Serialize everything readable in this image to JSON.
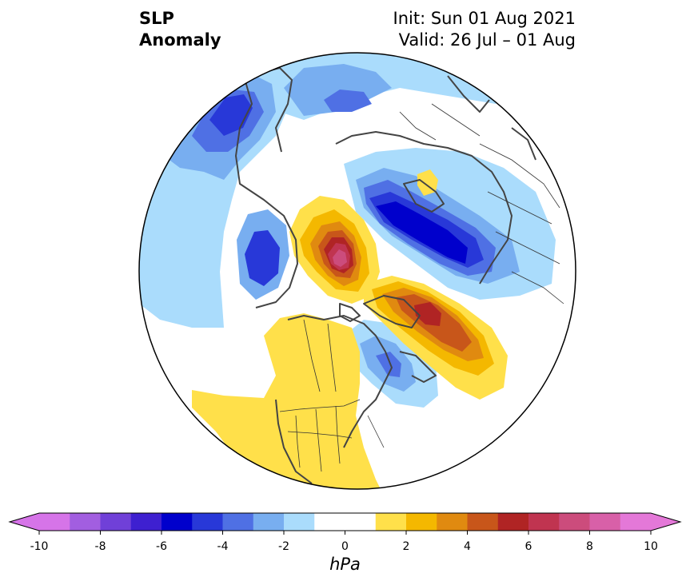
{
  "title": {
    "left_line1": "SLP",
    "left_line2": "Anomaly",
    "right_line1": "Init: Sun 01 Aug 2021",
    "right_line2": "Valid: 26 Jul – 01 Aug"
  },
  "colorbar": {
    "units": "hPa",
    "min": -10,
    "max": 10,
    "step": 1,
    "ticks": [
      "-10",
      "-8",
      "-6",
      "-4",
      "-2",
      "0",
      "2",
      "4",
      "6",
      "8",
      "10"
    ],
    "colors": [
      "#d674e8",
      "#a25ee0",
      "#7040d8",
      "#3e20d0",
      "#0000cc",
      "#2838d8",
      "#4f70e4",
      "#78aef0",
      "#aadcfc",
      "#ffffff",
      "#ffffff",
      "#ffe04a",
      "#f4b800",
      "#e08a10",
      "#c8561a",
      "#b02424",
      "#c03450",
      "#cc4c7c",
      "#d860a8",
      "#e478d8"
    ],
    "extend_min_color": "#d674e8",
    "extend_max_color": "#e478d8"
  },
  "map": {
    "projection": "north-polar-stereographic",
    "anomalies": [
      {
        "region": "North Pacific",
        "sign": "negative",
        "peak_hpa": -5
      },
      {
        "region": "Gulf of Alaska",
        "sign": "negative",
        "peak_hpa": -4
      },
      {
        "region": "Arctic Ocean (Siberian side)",
        "sign": "positive",
        "peak_hpa": 8
      },
      {
        "region": "Siberia / Kara Sea",
        "sign": "negative",
        "peak_hpa": -6
      },
      {
        "region": "Greenland to Barents Sea",
        "sign": "positive",
        "peak_hpa": 6
      },
      {
        "region": "Hudson Bay / Labrador",
        "sign": "negative",
        "peak_hpa": -3
      },
      {
        "region": "Western North America",
        "sign": "positive",
        "peak_hpa": 2
      },
      {
        "region": "Eastern Pacific off California",
        "sign": "positive",
        "peak_hpa": 2
      }
    ]
  }
}
